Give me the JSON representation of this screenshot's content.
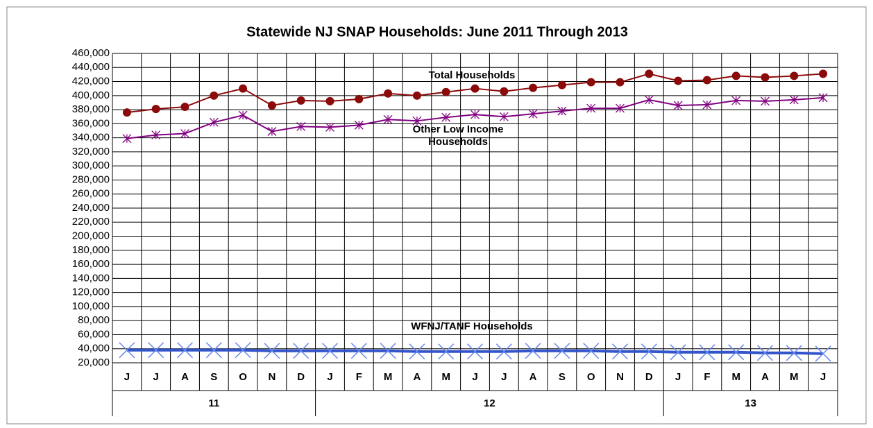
{
  "chart_data": {
    "type": "line",
    "title": "Statewide NJ SNAP Households: June 2011 Through 2013",
    "categories": [
      "J",
      "J",
      "A",
      "S",
      "O",
      "N",
      "D",
      "J",
      "F",
      "M",
      "A",
      "M",
      "J",
      "J",
      "A",
      "S",
      "O",
      "N",
      "D",
      "J",
      "F",
      "M",
      "A",
      "M",
      "J"
    ],
    "x_groups": [
      {
        "label": "11",
        "size": 7
      },
      {
        "label": "12",
        "size": 12
      },
      {
        "label": "13",
        "size": 6
      }
    ],
    "series": [
      {
        "name": "Total Households",
        "color": "#8b0a0a",
        "marker": "circle",
        "values": [
          376000,
          381000,
          384000,
          400000,
          410000,
          386000,
          393000,
          392000,
          395000,
          403000,
          400000,
          405000,
          410000,
          406000,
          411000,
          415000,
          419000,
          419000,
          431000,
          421000,
          422000,
          428000,
          426000,
          428000,
          431000
        ]
      },
      {
        "name": "Other Low Income Households",
        "color": "#800080",
        "marker": "asterisk",
        "values": [
          339000,
          344000,
          346000,
          362000,
          372000,
          349000,
          356000,
          355000,
          358000,
          366000,
          364000,
          369000,
          373000,
          370000,
          374000,
          378000,
          382000,
          382000,
          394000,
          386000,
          387000,
          393000,
          392000,
          394000,
          397000
        ]
      },
      {
        "name": "WFNJ/TANF Households",
        "color": "#3355cc",
        "marker_color": "#6688ee",
        "marker": "x",
        "values": [
          38000,
          38000,
          38000,
          38000,
          38000,
          37000,
          37000,
          37000,
          37000,
          37000,
          36000,
          36000,
          36000,
          36000,
          37000,
          37000,
          37000,
          36000,
          36000,
          35000,
          35000,
          35000,
          34000,
          34000,
          33000
        ]
      }
    ],
    "ylim": [
      20000,
      460000
    ],
    "yticks": [
      {
        "value": 20000,
        "label": "20,000"
      },
      {
        "value": 40000,
        "label": "40,000"
      },
      {
        "value": 60000,
        "label": "60,000"
      },
      {
        "value": 80000,
        "label": "80,000"
      },
      {
        "value": 100000,
        "label": "100,000"
      },
      {
        "value": 120000,
        "label": "120,000"
      },
      {
        "value": 140000,
        "label": "140,000"
      },
      {
        "value": 160000,
        "label": "160,000"
      },
      {
        "value": 180000,
        "label": "180,000"
      },
      {
        "value": 200000,
        "label": "200,000"
      },
      {
        "value": 220000,
        "label": "220,000"
      },
      {
        "value": 240000,
        "label": "240,000"
      },
      {
        "value": 260000,
        "label": "260,000"
      },
      {
        "value": 280000,
        "label": "280,000"
      },
      {
        "value": 300000,
        "label": "300,000"
      },
      {
        "value": 320000,
        "label": "320,000"
      },
      {
        "value": 340000,
        "label": "340,000"
      },
      {
        "value": 360000,
        "label": "360,000"
      },
      {
        "value": 380000,
        "label": "380,000"
      },
      {
        "value": 400000,
        "label": "400,000"
      },
      {
        "value": 420000,
        "label": "420,000"
      },
      {
        "value": 440000,
        "label": "440,000"
      },
      {
        "value": 460000,
        "label": "460,000"
      }
    ],
    "grid": true
  }
}
